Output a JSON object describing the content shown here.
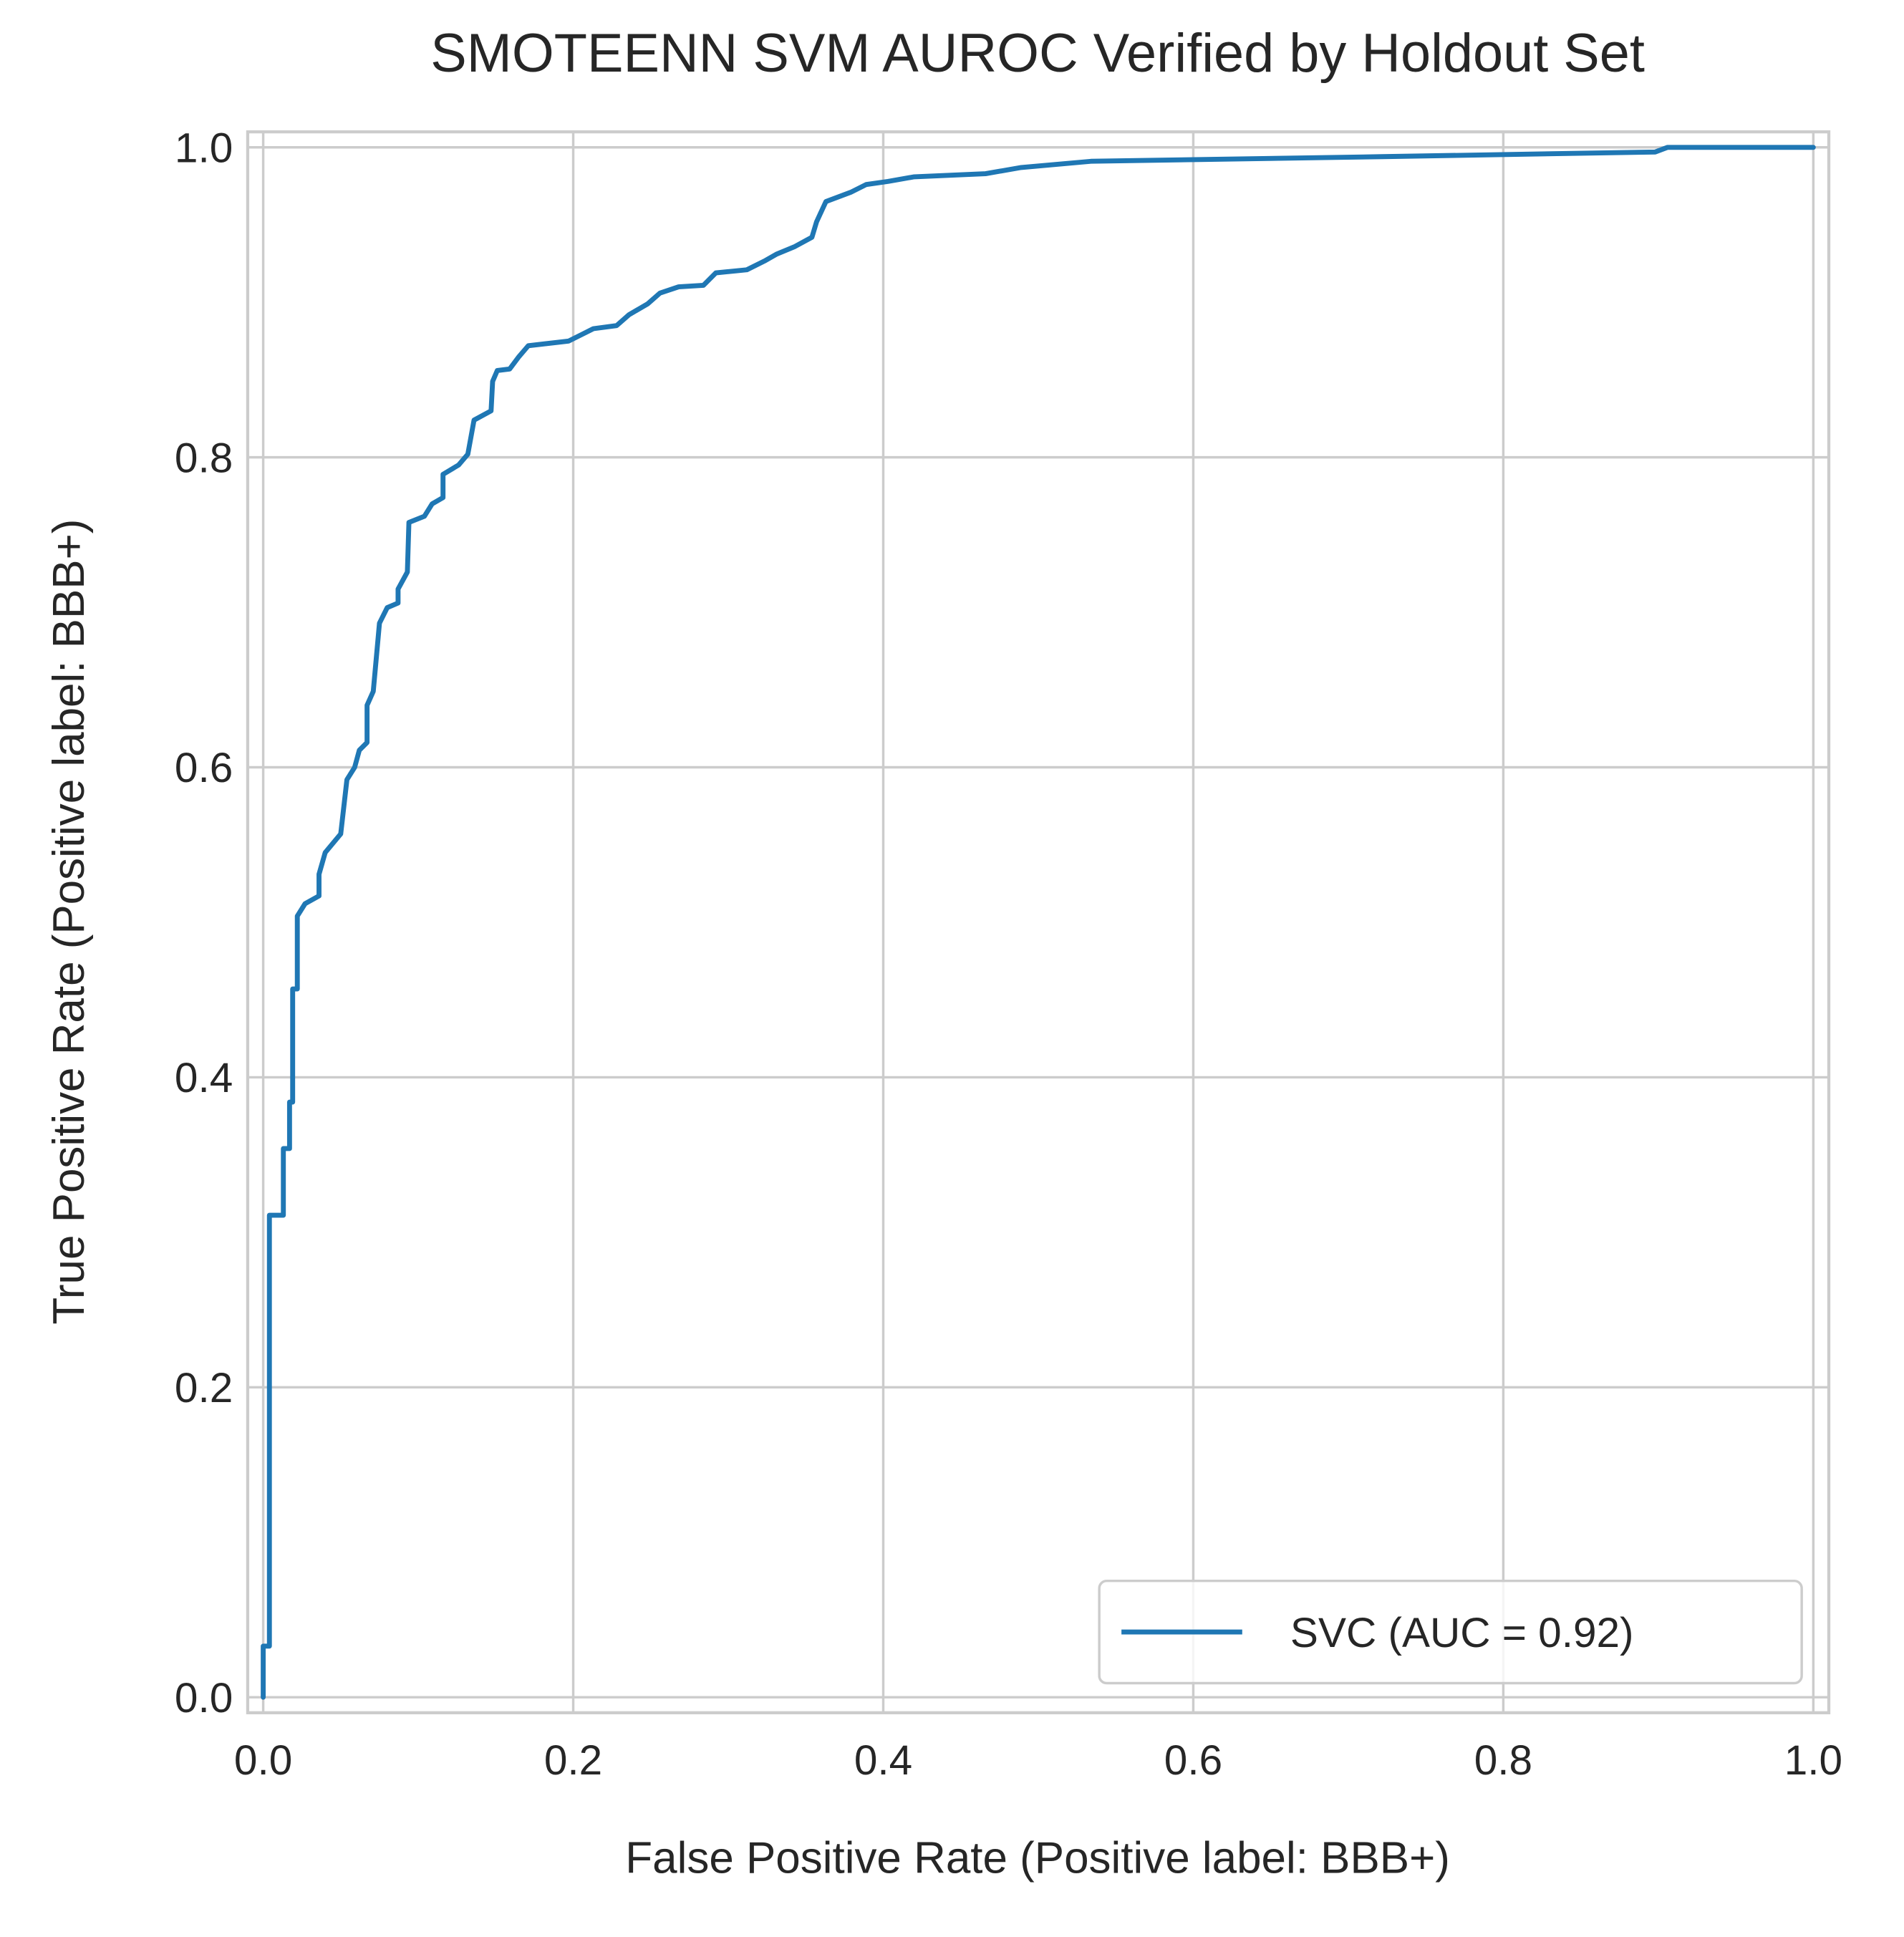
{
  "chart_data": {
    "type": "line",
    "title": "SMOTEENN SVM AUROC Verified by Holdout Set",
    "x_label": "False Positive Rate (Positive label: BBB+)",
    "y_label": "True Positive Rate (Positive label: BBB+)",
    "x": [
      0,
      0,
      0.004,
      0.004,
      0.013,
      0.013,
      0.017,
      0.017,
      0.019,
      0.019,
      0.022,
      0.022,
      0.027,
      0.036,
      0.036,
      0.04,
      0.05,
      0.054,
      0.059,
      0.062,
      0.067,
      0.067,
      0.071,
      0.075,
      0.08,
      0.087,
      0.087,
      0.093,
      0.094,
      0.104,
      0.109,
      0.116,
      0.116,
      0.126,
      0.132,
      0.136,
      0.147,
      0.148,
      0.151,
      0.159,
      0.165,
      0.171,
      0.197,
      0.205,
      0.213,
      0.228,
      0.236,
      0.248,
      0.256,
      0.268,
      0.284,
      0.292,
      0.312,
      0.324,
      0.331,
      0.343,
      0.354,
      0.357,
      0.363,
      0.371,
      0.379,
      0.389,
      0.403,
      0.42,
      0.466,
      0.489,
      0.534,
      0.722,
      0.898,
      0.906,
      1
    ],
    "series": [
      {
        "name": "SVC (AUC = 0.92)",
        "color": "#1f77b4",
        "values": [
          0,
          0.033,
          0.033,
          0.311,
          0.311,
          0.354,
          0.354,
          0.384,
          0.384,
          0.457,
          0.457,
          0.504,
          0.512,
          0.517,
          0.531,
          0.545,
          0.557,
          0.592,
          0.6,
          0.611,
          0.616,
          0.64,
          0.649,
          0.693,
          0.703,
          0.706,
          0.715,
          0.726,
          0.758,
          0.762,
          0.77,
          0.774,
          0.789,
          0.795,
          0.802,
          0.824,
          0.83,
          0.849,
          0.856,
          0.857,
          0.865,
          0.872,
          0.875,
          0.879,
          0.883,
          0.885,
          0.892,
          0.899,
          0.906,
          0.91,
          0.911,
          0.919,
          0.921,
          0.927,
          0.931,
          0.936,
          0.942,
          0.952,
          0.965,
          0.968,
          0.971,
          0.976,
          0.978,
          0.981,
          0.983,
          0.987,
          0.991,
          0.994,
          0.997,
          1,
          1
        ]
      }
    ],
    "xlim": [
      -0.01,
      1.01
    ],
    "ylim": [
      -0.01,
      1.01
    ],
    "xticks": [
      {
        "value": 0,
        "label": "0.0"
      },
      0.2,
      0.4,
      0.6,
      0.8,
      {
        "value": 1,
        "label": "1.0"
      }
    ],
    "yticks": [
      {
        "value": 0,
        "label": "0.0"
      },
      0.2,
      0.4,
      0.6,
      0.8,
      {
        "value": 1,
        "label": "1.0"
      }
    ],
    "grid": true,
    "legend": "lower right"
  }
}
